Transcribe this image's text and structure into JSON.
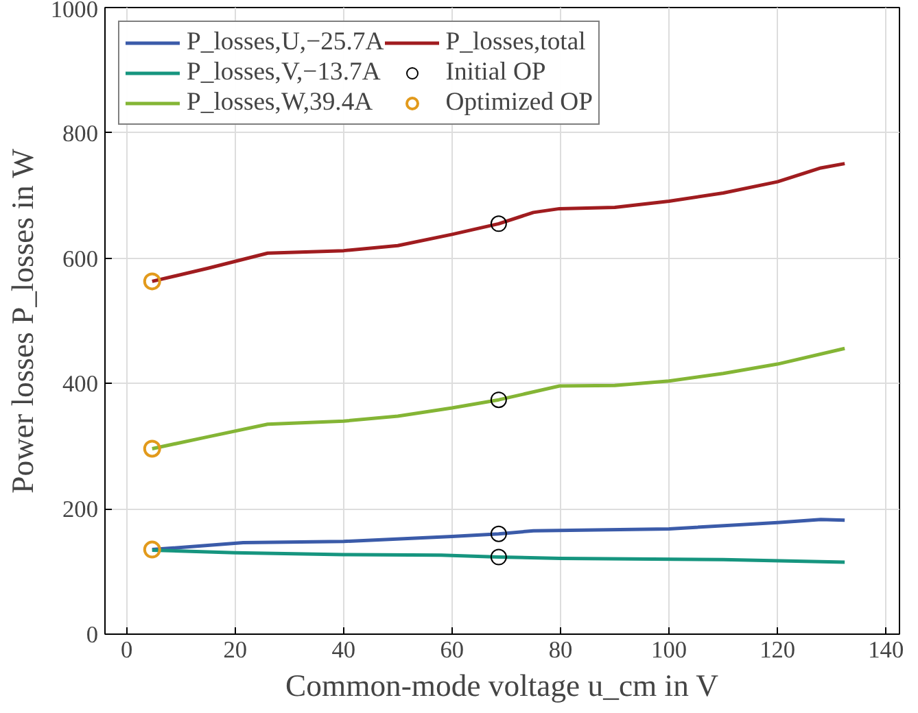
{
  "chart_data": {
    "type": "line",
    "xlabel": "Common-mode voltage u_cm in V",
    "ylabel": "Power losses P_losses in W",
    "xlim": [
      -4,
      142.5
    ],
    "ylim": [
      0,
      1000
    ],
    "xticks": [
      0,
      20,
      40,
      60,
      80,
      100,
      120,
      140
    ],
    "yticks": [
      0,
      200,
      400,
      600,
      800,
      1000
    ],
    "grid": true,
    "legend": "top left",
    "line_style": "solid",
    "marker": "none",
    "series": [
      {
        "name": "P_losses,U,−25.7A",
        "color": "#3b5ba9",
        "x": [
          4.7,
          21.5,
          40,
          60,
          68.6,
          75,
          100,
          120,
          128,
          132.4
        ],
        "values": [
          135,
          146,
          148,
          156,
          160,
          165,
          168,
          178,
          183,
          182
        ]
      },
      {
        "name": "P_losses,V,−13.7A",
        "color": "#16957f",
        "x": [
          4.7,
          20,
          40,
          58,
          68.6,
          80,
          110,
          132.4
        ],
        "values": [
          134,
          130,
          127,
          126,
          123,
          121,
          119,
          115
        ]
      },
      {
        "name": "P_losses,W,39.4A",
        "color": "#84b535",
        "x": [
          4.7,
          15,
          26,
          40,
          50,
          60,
          68.6,
          79.8,
          90,
          100,
          110,
          120,
          132.4
        ],
        "values": [
          296,
          315,
          335,
          340,
          348,
          361,
          374,
          396,
          397,
          404,
          416,
          431,
          456
        ]
      },
      {
        "name": "P_losses,total",
        "color": "#a01c1f",
        "x": [
          4.7,
          15,
          26,
          40,
          50,
          60,
          68.6,
          75,
          79.8,
          90,
          100,
          110,
          120,
          128,
          132.4
        ],
        "values": [
          563,
          584,
          608,
          612,
          620,
          638,
          655,
          673,
          679,
          681,
          691,
          704,
          722,
          744,
          751
        ]
      },
      {
        "name": "Initial OP",
        "type": "scatter",
        "marker": "circle",
        "color": "#000000",
        "x": [
          68.6,
          68.6,
          68.6,
          68.6
        ],
        "values": [
          655,
          374,
          160,
          123
        ]
      },
      {
        "name": "Optimized OP",
        "type": "scatter",
        "marker": "circle",
        "color": "#e29a1c",
        "x": [
          4.7,
          4.7,
          4.7
        ],
        "values": [
          563,
          296,
          135
        ]
      }
    ]
  }
}
